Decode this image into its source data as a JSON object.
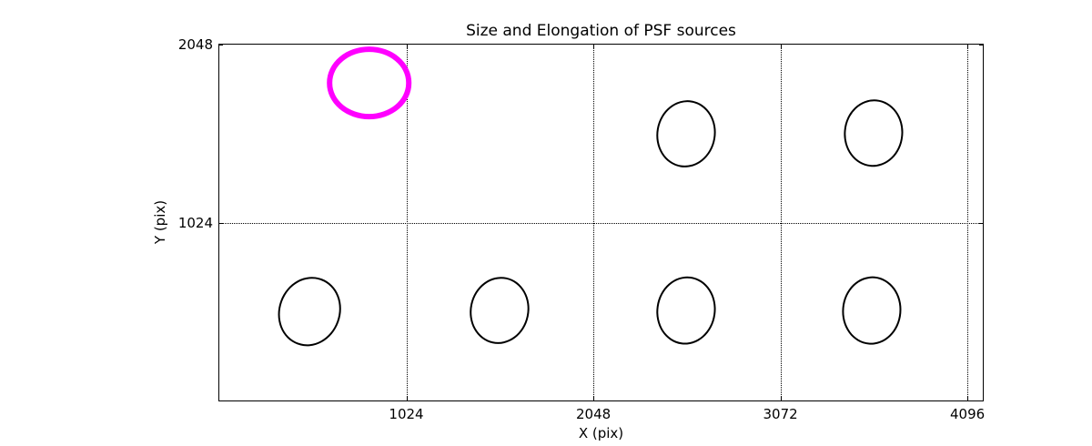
{
  "figure": {
    "background": "#ffffff",
    "accent_color": "#ff00ff",
    "line_color": "#000000"
  },
  "chart_data": {
    "type": "scatter",
    "marker": "ellipse",
    "title": "Size and Elongation of PSF sources",
    "xlabel": "X (pix)",
    "ylabel": "Y (pix)",
    "xlim": [
      0,
      4180
    ],
    "ylim": [
      0,
      2048
    ],
    "xticks": [
      1024,
      2048,
      3072,
      4096
    ],
    "yticks": [
      1024,
      2048
    ],
    "grid": {
      "style": "dotted",
      "color": "#000000",
      "x_values": [
        1024,
        2048,
        3072,
        4096
      ],
      "y_values": [
        1024,
        2048
      ]
    },
    "legend": "none",
    "ellipses": [
      {
        "name": "highlighted-psf-source",
        "x": 821,
        "y": 1827,
        "rx": 217,
        "ry": 192,
        "tilt_deg": 0,
        "color": "#ff00ff",
        "line_width": 6.5
      },
      {
        "name": "psf-source",
        "x": 2556,
        "y": 1534,
        "rx": 156,
        "ry": 187,
        "tilt_deg": 10,
        "color": "#000000",
        "line_width": 2.5
      },
      {
        "name": "psf-source",
        "x": 3580,
        "y": 1540,
        "rx": 156,
        "ry": 186,
        "tilt_deg": 5,
        "color": "#000000",
        "line_width": 2.5
      },
      {
        "name": "psf-source",
        "x": 494,
        "y": 515,
        "rx": 162,
        "ry": 194,
        "tilt_deg": 20,
        "color": "#000000",
        "line_width": 2.5
      },
      {
        "name": "psf-source",
        "x": 1534,
        "y": 519,
        "rx": 156,
        "ry": 187,
        "tilt_deg": 12,
        "color": "#000000",
        "line_width": 2.5
      },
      {
        "name": "psf-source",
        "x": 2556,
        "y": 517,
        "rx": 156,
        "ry": 189,
        "tilt_deg": 8,
        "color": "#000000",
        "line_width": 2.5
      },
      {
        "name": "psf-source",
        "x": 3574,
        "y": 517,
        "rx": 156,
        "ry": 189,
        "tilt_deg": 5,
        "color": "#000000",
        "line_width": 2.5
      }
    ]
  }
}
